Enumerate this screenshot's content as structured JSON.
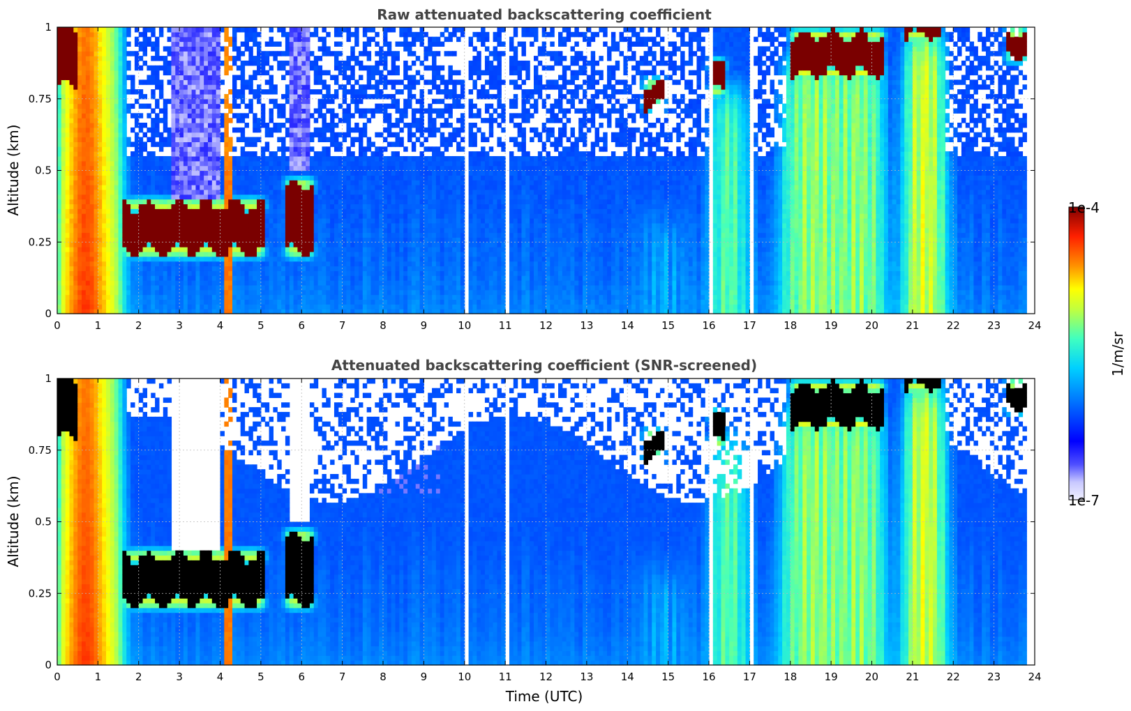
{
  "colorbar": {
    "label": "1/m/sr",
    "min_label": "1e-7",
    "max_label": "1e-4",
    "scale": "log",
    "range": [
      1e-07,
      0.0001
    ],
    "colormap": "jet"
  },
  "chart_data": [
    {
      "type": "heatmap",
      "title": "Raw attenuated backscattering coefficient",
      "xlabel": "",
      "ylabel": "Altitude (km)",
      "xlim": [
        0,
        24
      ],
      "ylim": [
        0,
        1
      ],
      "xticks": [
        "0",
        "1",
        "2",
        "3",
        "4",
        "5",
        "6",
        "7",
        "8",
        "9",
        "10",
        "11",
        "12",
        "13",
        "14",
        "15",
        "16",
        "17",
        "18",
        "19",
        "20",
        "21",
        "22",
        "23",
        "24"
      ],
      "yticks": [
        "0",
        "0.25",
        "0.5",
        "0.75",
        "1"
      ],
      "grid": true,
      "screened": false,
      "data_end_hour": 23.8,
      "features": [
        {
          "name": "dense boundary aerosol",
          "x": [
            0,
            1.6
          ],
          "y": [
            0,
            1
          ],
          "level": "high"
        },
        {
          "name": "low cloud layer",
          "x": [
            1.6,
            5.1
          ],
          "y": [
            0.22,
            0.38
          ],
          "level": "saturated"
        },
        {
          "name": "low cloud layer",
          "x": [
            5.6,
            6.3
          ],
          "y": [
            0.22,
            0.45
          ],
          "level": "saturated"
        },
        {
          "name": "cloud patch",
          "x": [
            14.4,
            14.9
          ],
          "y": [
            0.73,
            0.8
          ],
          "level": "saturated"
        },
        {
          "name": "cloud patch",
          "x": [
            16.0,
            16.4
          ],
          "y": [
            0.78,
            0.87
          ],
          "level": "saturated"
        },
        {
          "name": "cloud layer",
          "x": [
            18.0,
            20.3
          ],
          "y": [
            0.84,
            0.97
          ],
          "level": "saturated"
        },
        {
          "name": "cloud layer",
          "x": [
            20.8,
            21.7
          ],
          "y": [
            0.97,
            1
          ],
          "level": "saturated"
        },
        {
          "name": "cloud layer",
          "x": [
            23.3,
            23.8
          ],
          "y": [
            0.9,
            0.98
          ],
          "level": "saturated"
        },
        {
          "name": "precipitation / fog column",
          "x": [
            16.1,
            16.9
          ],
          "y": [
            0,
            0.8
          ],
          "level": "mid"
        },
        {
          "name": "precipitation / fog column",
          "x": [
            17.8,
            20.3
          ],
          "y": [
            0,
            0.9
          ],
          "level": "mid"
        },
        {
          "name": "precipitation / fog column",
          "x": [
            20.8,
            21.8
          ],
          "y": [
            0,
            1
          ],
          "level": "mid-high"
        }
      ]
    },
    {
      "type": "heatmap",
      "title": "Attenuated backscattering coefficient (SNR-screened)",
      "xlabel": "Time (UTC)",
      "ylabel": "Altitude (km)",
      "xlim": [
        0,
        24
      ],
      "ylim": [
        0,
        1
      ],
      "xticks": [
        "0",
        "1",
        "2",
        "3",
        "4",
        "5",
        "6",
        "7",
        "8",
        "9",
        "10",
        "11",
        "12",
        "13",
        "14",
        "15",
        "16",
        "17",
        "18",
        "19",
        "20",
        "21",
        "22",
        "23",
        "24"
      ],
      "yticks": [
        "0",
        "0.25",
        "0.5",
        "0.75",
        "1"
      ],
      "grid": true,
      "screened": true,
      "saturated_color": "#000000",
      "data_end_hour": 23.8
    }
  ]
}
